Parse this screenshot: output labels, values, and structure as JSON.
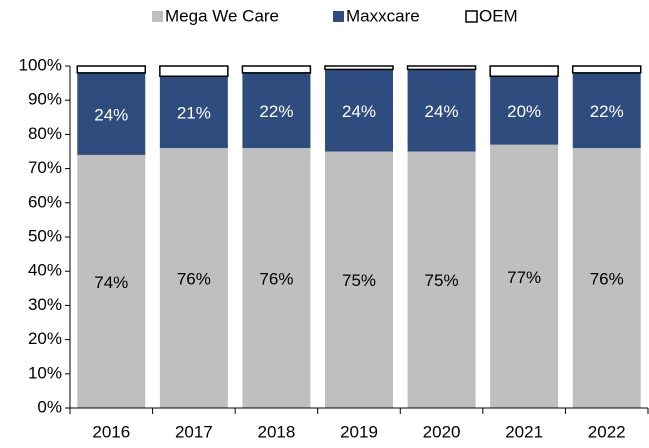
{
  "chart_data": {
    "type": "stacked_bar",
    "categories": [
      "2016",
      "2017",
      "2018",
      "2019",
      "2020",
      "2021",
      "2022"
    ],
    "series": [
      {
        "name": "Mega We Care",
        "color": "#bfbfbf",
        "label_color": "#000000",
        "values": [
          74,
          76,
          76,
          75,
          75,
          77,
          76
        ],
        "value_labels": [
          "74%",
          "76%",
          "76%",
          "75%",
          "75%",
          "77%",
          "76%"
        ]
      },
      {
        "name": "Maxxcare",
        "color": "#2e4d7e",
        "label_color": "#ffffff",
        "values": [
          24,
          21,
          22,
          24,
          24,
          20,
          22
        ],
        "value_labels": [
          "24%",
          "21%",
          "22%",
          "24%",
          "24%",
          "20%",
          "22%"
        ]
      },
      {
        "name": "OEM",
        "color": "#ffffff",
        "values": [
          2,
          3,
          2,
          1,
          1,
          3,
          2
        ]
      }
    ],
    "ylim": [
      0,
      100
    ],
    "yticks": [
      {
        "value": 0,
        "label": "0%"
      },
      {
        "value": 10,
        "label": "10%"
      },
      {
        "value": 20,
        "label": "20%"
      },
      {
        "value": 30,
        "label": "30%"
      },
      {
        "value": 40,
        "label": "40%"
      },
      {
        "value": 50,
        "label": "50%"
      },
      {
        "value": 60,
        "label": "60%"
      },
      {
        "value": 70,
        "label": "70%"
      },
      {
        "value": 80,
        "label": "80%"
      },
      {
        "value": 90,
        "label": "90%"
      },
      {
        "value": 100,
        "label": "100%"
      }
    ],
    "legend": "top"
  }
}
